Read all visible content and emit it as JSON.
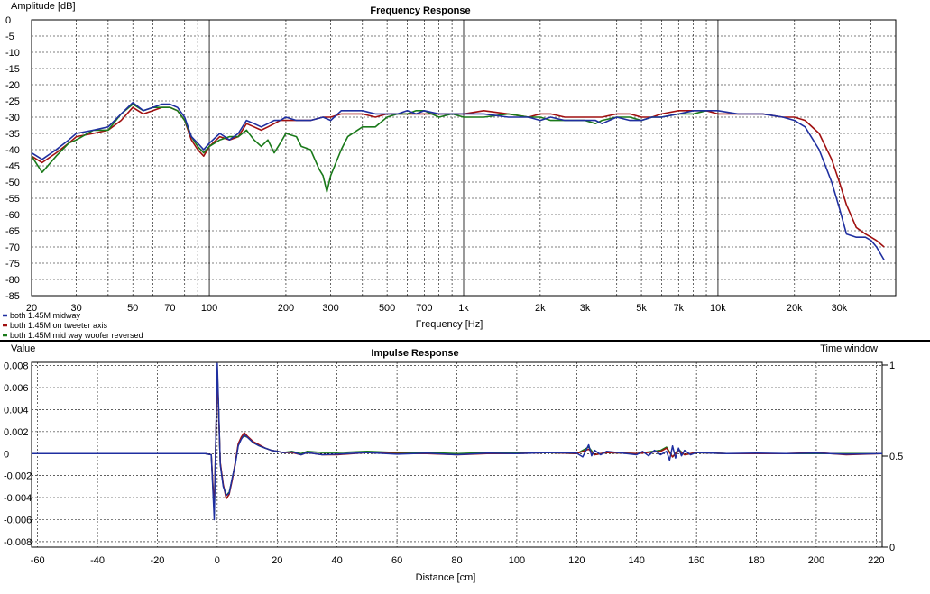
{
  "colors": {
    "background": "#ffffff",
    "grid": "#000000",
    "separator": "#000000"
  },
  "chart_data": [
    {
      "type": "line",
      "title": "Frequency Response",
      "xlabel": "Frequency [Hz]",
      "ylabel": "Amplitude [dB]",
      "xscale": "log",
      "xlim": [
        20,
        50000
      ],
      "ylim": [
        -85,
        0
      ],
      "x_ticks": [
        {
          "v": 20,
          "label": "20"
        },
        {
          "v": 30,
          "label": "30"
        },
        {
          "v": 50,
          "label": "50"
        },
        {
          "v": 70,
          "label": "70"
        },
        {
          "v": 100,
          "label": "100"
        },
        {
          "v": 200,
          "label": "200"
        },
        {
          "v": 300,
          "label": "300"
        },
        {
          "v": 500,
          "label": "500"
        },
        {
          "v": 700,
          "label": "700"
        },
        {
          "v": 1000,
          "label": "1k"
        },
        {
          "v": 2000,
          "label": "2k"
        },
        {
          "v": 3000,
          "label": "3k"
        },
        {
          "v": 5000,
          "label": "5k"
        },
        {
          "v": 7000,
          "label": "7k"
        },
        {
          "v": 10000,
          "label": "10k"
        },
        {
          "v": 20000,
          "label": "20k"
        },
        {
          "v": 30000,
          "label": "30k"
        }
      ],
      "y_ticks": [
        "0",
        "-5",
        "-10",
        "-15",
        "-20",
        "-25",
        "-30",
        "-35",
        "-40",
        "-45",
        "-50",
        "-55",
        "-60",
        "-65",
        "-70",
        "-75",
        "-80",
        "-85"
      ],
      "grid": true,
      "legend_position": "bottom-left",
      "series": [
        {
          "name": "both 1.45M midway",
          "color": "#1f2fa0",
          "x": [
            20,
            22,
            25,
            28,
            30,
            35,
            40,
            45,
            50,
            55,
            60,
            65,
            70,
            75,
            80,
            85,
            90,
            95,
            100,
            110,
            120,
            130,
            140,
            150,
            160,
            170,
            180,
            190,
            200,
            220,
            250,
            280,
            300,
            330,
            350,
            400,
            450,
            500,
            550,
            600,
            650,
            700,
            800,
            900,
            1000,
            1200,
            1500,
            1800,
            2000,
            2200,
            2500,
            3000,
            3300,
            3500,
            4000,
            4500,
            5000,
            5500,
            6000,
            7000,
            8000,
            9000,
            10000,
            12000,
            15000,
            18000,
            20000,
            22000,
            25000,
            28000,
            30000,
            32000,
            35000,
            38000,
            40000,
            42000,
            45000
          ],
          "y": [
            -41,
            -43,
            -40,
            -37,
            -35,
            -34,
            -33,
            -29,
            -25.5,
            -28,
            -27,
            -26,
            -26,
            -27,
            -30,
            -36,
            -38,
            -40,
            -38,
            -35,
            -37,
            -35,
            -31,
            -32,
            -33,
            -32,
            -31,
            -31,
            -30,
            -31,
            -31,
            -30,
            -31,
            -28,
            -28,
            -28,
            -29,
            -29,
            -29,
            -28,
            -29,
            -28,
            -29,
            -29,
            -29,
            -29,
            -30,
            -30,
            -31,
            -30,
            -31,
            -31,
            -31,
            -32,
            -30,
            -31,
            -31,
            -30,
            -30,
            -29,
            -28,
            -28,
            -28,
            -29,
            -29,
            -30,
            -31,
            -33,
            -40,
            -50,
            -58,
            -66,
            -67,
            -67,
            -68,
            -70,
            -74
          ]
        },
        {
          "name": "both 1.45M on tweeter axis",
          "color": "#a01010",
          "x": [
            20,
            22,
            25,
            28,
            30,
            35,
            40,
            45,
            50,
            55,
            60,
            65,
            70,
            75,
            80,
            85,
            90,
            95,
            100,
            110,
            120,
            130,
            140,
            150,
            160,
            170,
            180,
            190,
            200,
            220,
            250,
            280,
            300,
            330,
            350,
            400,
            450,
            500,
            550,
            600,
            650,
            700,
            800,
            900,
            1000,
            1200,
            1500,
            1800,
            2000,
            2200,
            2500,
            3000,
            3300,
            3500,
            4000,
            4500,
            5000,
            5500,
            6000,
            7000,
            8000,
            9000,
            10000,
            12000,
            15000,
            18000,
            20000,
            22000,
            25000,
            28000,
            30000,
            32000,
            35000,
            38000,
            40000,
            42000,
            45000
          ],
          "y": [
            -42,
            -44,
            -41,
            -38,
            -36,
            -35,
            -34,
            -31,
            -27,
            -29,
            -28,
            -27,
            -27,
            -28,
            -31,
            -37,
            -40,
            -42,
            -39,
            -36,
            -37,
            -36,
            -32,
            -33,
            -34,
            -33,
            -32,
            -31,
            -31,
            -31,
            -31,
            -30,
            -30,
            -29,
            -29,
            -29,
            -30,
            -29,
            -29,
            -29,
            -29,
            -29,
            -29,
            -29,
            -29,
            -28,
            -29,
            -30,
            -29,
            -29,
            -30,
            -30,
            -30,
            -30,
            -29,
            -29,
            -30,
            -30,
            -29,
            -28,
            -28,
            -28,
            -29,
            -29,
            -29,
            -30,
            -30,
            -31,
            -35,
            -43,
            -50,
            -57,
            -64,
            -66,
            -67,
            -68,
            -70
          ]
        },
        {
          "name": "both 1.45M mid way woofer reversed",
          "color": "#1a7a1a",
          "x": [
            20,
            22,
            25,
            28,
            30,
            35,
            40,
            45,
            50,
            55,
            60,
            65,
            70,
            75,
            80,
            85,
            90,
            95,
            100,
            110,
            120,
            130,
            140,
            150,
            160,
            170,
            180,
            190,
            200,
            220,
            230,
            250,
            270,
            280,
            290,
            300,
            330,
            350,
            400,
            450,
            500,
            550,
            600,
            650,
            700,
            800,
            900,
            1000,
            1200,
            1500,
            1800,
            2000,
            2200,
            2500,
            3000,
            3300,
            3500,
            4000,
            4500,
            5000,
            5500,
            6000,
            7000,
            8000,
            9000
          ],
          "y": [
            -42,
            -47,
            -42,
            -38,
            -37,
            -34,
            -34,
            -29,
            -26,
            -28,
            -27,
            -27,
            -27,
            -28,
            -31,
            -36,
            -39,
            -41,
            -39,
            -37,
            -36,
            -36,
            -34,
            -37,
            -39,
            -37,
            -41,
            -38,
            -35,
            -36,
            -39,
            -40,
            -46,
            -48,
            -53,
            -48,
            -40,
            -36,
            -33,
            -33,
            -30,
            -29,
            -29,
            -28,
            -28,
            -30,
            -29,
            -30,
            -30,
            -29,
            -30,
            -30,
            -31,
            -31,
            -31,
            -32,
            -31,
            -30,
            -30,
            -31,
            -30,
            -30,
            -29,
            -29,
            -28
          ]
        }
      ]
    },
    {
      "type": "line",
      "title": "Impulse Response",
      "xlabel": "Distance [cm]",
      "ylabel": "Value",
      "y2label": "Time window",
      "xlim": [
        -62,
        222
      ],
      "ylim": [
        -0.0085,
        0.0083
      ],
      "y2lim": [
        0,
        1
      ],
      "x_ticks": [
        "-60",
        "-40",
        "-20",
        "0",
        "20",
        "40",
        "60",
        "80",
        "100",
        "120",
        "140",
        "160",
        "180",
        "200",
        "220"
      ],
      "y_ticks": [
        "0.008",
        "0.006",
        "0.004",
        "0.002",
        "0",
        "-0.002",
        "-0.004",
        "-0.006",
        "-0.008"
      ],
      "y2_ticks": [
        "1",
        "0.5",
        "0"
      ],
      "grid": true,
      "series": [
        {
          "name": "both 1.45M midway",
          "color": "#1f2fa0",
          "x": [
            -62,
            -4,
            -2,
            -1,
            0,
            0.5,
            1,
            2,
            3,
            4,
            5,
            6,
            7,
            8,
            9,
            10,
            12,
            14,
            16,
            18,
            20,
            22,
            25,
            28,
            30,
            35,
            40,
            50,
            60,
            70,
            80,
            90,
            100,
            110,
            120,
            122,
            124,
            125,
            126,
            128,
            130,
            140,
            142,
            144,
            146,
            148,
            150,
            151,
            152,
            153,
            154,
            155,
            156,
            158,
            160,
            170,
            180,
            190,
            200,
            210,
            222
          ],
          "y": [
            0,
            0,
            -0.0001,
            -0.006,
            0.0082,
            0.004,
            -0.001,
            -0.003,
            -0.0038,
            -0.0036,
            -0.0022,
            -0.001,
            0.0007,
            0.0013,
            0.0017,
            0.0015,
            0.001,
            0.0007,
            0.0005,
            0.0003,
            0.0002,
            0.0001,
            0.00015,
            -0.0001,
            0.0001,
            -0.0001,
            -5e-05,
            0.0001,
            -5e-05,
            5e-05,
            -0.0001,
            5e-05,
            0,
            0.0001,
            5e-05,
            -0.0003,
            0.0008,
            -0.0002,
            0.0003,
            -0.0001,
            0.0002,
            -0.0001,
            0.0002,
            -0.0002,
            0.0003,
            -0.0001,
            0.0002,
            -0.0006,
            0.0007,
            -0.0004,
            0.0005,
            -0.0002,
            0.0003,
            -0.0001,
            0.0001,
            0,
            5e-05,
            0,
            5e-05,
            -5e-05,
            0
          ]
        },
        {
          "name": "both 1.45M on tweeter axis",
          "color": "#a01010",
          "x": [
            -62,
            -4,
            -2,
            -1,
            0,
            0.5,
            1,
            2,
            3,
            4,
            5,
            6,
            7,
            8,
            9,
            10,
            12,
            14,
            16,
            18,
            20,
            22,
            25,
            28,
            30,
            35,
            40,
            50,
            60,
            70,
            80,
            90,
            100,
            110,
            120,
            124,
            126,
            130,
            140,
            148,
            150,
            152,
            154,
            156,
            160,
            170,
            180,
            190,
            200,
            210,
            222
          ],
          "y": [
            0,
            0,
            -0.0001,
            -0.005,
            0.0072,
            0.0035,
            -0.0008,
            -0.0028,
            -0.0041,
            -0.0037,
            -0.0024,
            -0.0008,
            0.0009,
            0.0015,
            0.0019,
            0.0016,
            0.0011,
            0.0008,
            0.0005,
            0.0003,
            0.0002,
            0.0001,
            0.0001,
            -0.0001,
            0.0001,
            -0.0001,
            -0.0001,
            0.0001,
            0,
            0,
            -0.0001,
            0,
            0,
            0.0001,
            0,
            0.0004,
            -0.0001,
            0.0001,
            0,
            0.0002,
            0.0005,
            -0.0003,
            0.0003,
            -0.0001,
            0.0001,
            0,
            0,
            0,
            0.0001,
            -0.0001,
            0
          ]
        },
        {
          "name": "both 1.45M mid way woofer reversed",
          "color": "#1a7a1a",
          "x": [
            -62,
            -4,
            -2,
            -1,
            0,
            0.5,
            1,
            2,
            3,
            4,
            5,
            6,
            7,
            8,
            9,
            10,
            12,
            14,
            16,
            18,
            20,
            22,
            25,
            28,
            30,
            35,
            40,
            50,
            60,
            70,
            80,
            90,
            100,
            110,
            120,
            124,
            126,
            130,
            140,
            148,
            150,
            152,
            154,
            156,
            160,
            170,
            180,
            190,
            200,
            210,
            222
          ],
          "y": [
            0,
            0,
            -0.0001,
            -0.0055,
            0.0075,
            0.0036,
            -0.0009,
            -0.0029,
            -0.0038,
            -0.0035,
            -0.0023,
            -0.0009,
            0.0008,
            0.0014,
            0.0016,
            0.0015,
            0.001,
            0.0007,
            0.0005,
            0.0003,
            0.0002,
            0.0001,
            0.0002,
            0,
            0.0002,
            0.0001,
            0.0001,
            0.0002,
            0.0001,
            0.0001,
            0,
            0.0001,
            0.0001,
            0.0001,
            0,
            0.0006,
            -0.0001,
            0.0001,
            0,
            0.0003,
            0.0006,
            -0.0003,
            0.0004,
            -0.0001,
            0.0001,
            0,
            0,
            0,
            0,
            0,
            0
          ]
        }
      ]
    }
  ]
}
